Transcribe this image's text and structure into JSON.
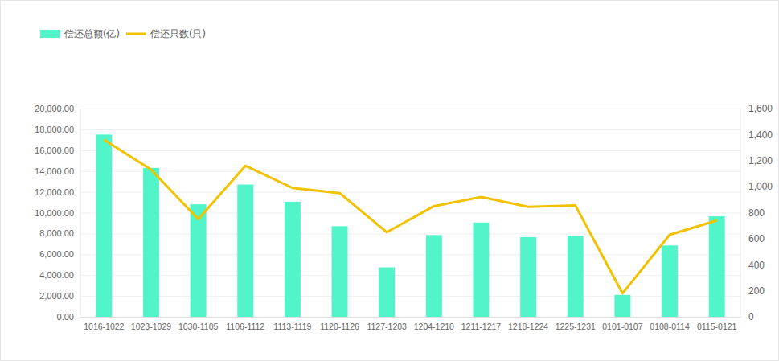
{
  "chart_data": {
    "type": "bar",
    "categories": [
      "1016-1022",
      "1023-1029",
      "1030-1105",
      "1106-1112",
      "1113-1119",
      "1120-1126",
      "1127-1203",
      "1204-1210",
      "1211-1217",
      "1218-1224",
      "1225-1231",
      "0101-0107",
      "0108-0114",
      "0115-0121"
    ],
    "series": [
      {
        "name": "偿还总额(亿)",
        "type": "bar",
        "axis": "y",
        "color": "#52f5c9",
        "values": [
          17500,
          14300,
          10800,
          12700,
          11050,
          8700,
          4750,
          7850,
          9050,
          7650,
          7800,
          2100,
          6850,
          9650
        ]
      },
      {
        "name": "偿还只数(只)",
        "type": "line",
        "axis": "y2",
        "color": "#f2c200",
        "values": [
          1360,
          1130,
          750,
          1160,
          990,
          950,
          650,
          850,
          920,
          845,
          855,
          180,
          630,
          740
        ]
      }
    ],
    "ylim": [
      0,
      20000
    ],
    "yticks": [
      {
        "value": 0,
        "label": "0.00"
      },
      {
        "value": 2000,
        "label": "2,000.00"
      },
      {
        "value": 4000,
        "label": "4,000.00"
      },
      {
        "value": 6000,
        "label": "6,000.00"
      },
      {
        "value": 8000,
        "label": "8,000.00"
      },
      {
        "value": 10000,
        "label": "10,000.00"
      },
      {
        "value": 12000,
        "label": "12,000.00"
      },
      {
        "value": 14000,
        "label": "14,000.00"
      },
      {
        "value": 16000,
        "label": "16,000.00"
      },
      {
        "value": 18000,
        "label": "18,000.00"
      },
      {
        "value": 20000,
        "label": "20,000.00"
      }
    ],
    "y2lim": [
      0,
      1600
    ],
    "y2ticks": [
      0,
      200,
      400,
      600,
      800,
      {
        "value": 1000,
        "label": "1,000"
      },
      {
        "value": 1200,
        "label": "1,200"
      },
      {
        "value": 1400,
        "label": "1,400"
      },
      {
        "value": 1600,
        "label": "1,600"
      }
    ],
    "grid": true,
    "legend": "top-left"
  }
}
